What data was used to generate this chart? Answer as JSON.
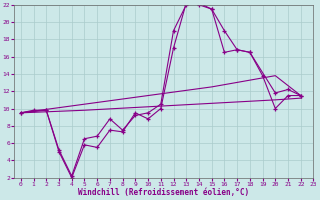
{
  "xlabel": "Windchill (Refroidissement éolien,°C)",
  "background_color": "#cce8e8",
  "line_color": "#880088",
  "xlim": [
    -0.5,
    23
  ],
  "ylim": [
    2,
    22
  ],
  "yticks": [
    2,
    4,
    6,
    8,
    10,
    12,
    14,
    16,
    18,
    20,
    22
  ],
  "xticks": [
    0,
    1,
    2,
    3,
    4,
    5,
    6,
    7,
    8,
    9,
    10,
    11,
    12,
    13,
    14,
    15,
    16,
    17,
    18,
    19,
    20,
    21,
    22,
    23
  ],
  "series": [
    {
      "x": [
        0,
        1,
        2,
        3,
        4,
        5,
        6,
        7,
        8,
        9,
        10,
        11,
        12,
        13,
        14,
        15,
        16,
        17,
        18,
        19,
        20,
        21,
        22
      ],
      "y": [
        9.5,
        9.8,
        9.8,
        5.2,
        2.2,
        6.5,
        6.8,
        8.8,
        7.5,
        9.2,
        9.5,
        10.5,
        19.0,
        22.0,
        22.2,
        21.5,
        19.0,
        16.8,
        16.5,
        13.8,
        10.0,
        11.5,
        11.5
      ],
      "marker": true
    },
    {
      "x": [
        0,
        2,
        3,
        4,
        5,
        6,
        7,
        8,
        9,
        10,
        11,
        12,
        13,
        14,
        15,
        16,
        17,
        18,
        20,
        21,
        22
      ],
      "y": [
        9.5,
        9.8,
        5.0,
        2.0,
        5.8,
        5.5,
        7.5,
        7.3,
        9.5,
        8.8,
        10.0,
        17.0,
        22.2,
        22.0,
        21.5,
        16.5,
        16.8,
        16.5,
        11.8,
        12.2,
        11.5
      ],
      "marker": true
    },
    {
      "x": [
        0,
        5,
        10,
        15,
        20,
        22
      ],
      "y": [
        9.5,
        10.5,
        11.5,
        12.5,
        13.8,
        11.5
      ],
      "marker": false
    },
    {
      "x": [
        0,
        5,
        10,
        15,
        20,
        22
      ],
      "y": [
        9.5,
        9.8,
        10.2,
        10.6,
        11.0,
        11.2
      ],
      "marker": false
    }
  ]
}
